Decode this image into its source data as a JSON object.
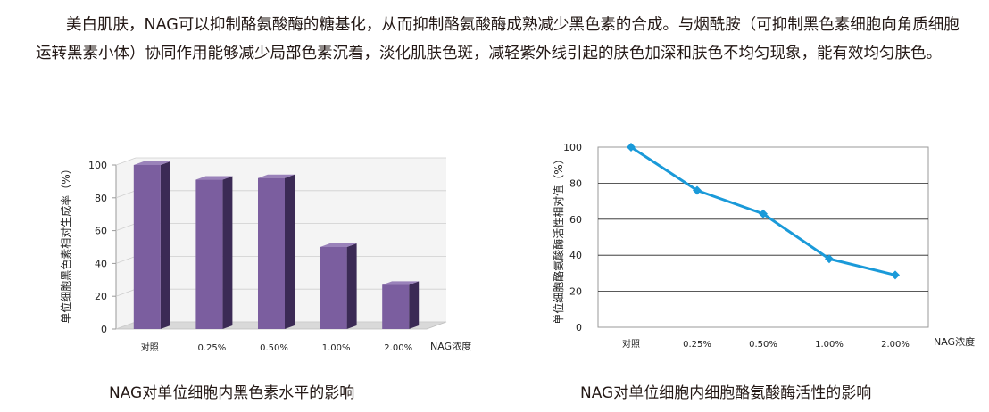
{
  "paragraph": "美白肌肤，NAG可以抑制酪氨酸酶的糖基化，从而抑制酪氨酸酶成熟减少黑色素的合成。与烟酰胺（可抑制黑色素细胞向角质细胞运转黑素小体）协同作用能够减少局部色素沉着，淡化肌肤色斑，减轻紫外线引起的肤色加深和肤色不均匀现象，能有效均匀肤色。",
  "chart_data": [
    {
      "type": "bar",
      "title": "NAG对单位细胞内黑色素水平的影响",
      "ylabel": "单位细胞黑色素相对生成率（%）",
      "xlabel": "NAG浓度",
      "categories": [
        "对照",
        "0.25%",
        "0.50%",
        "1.00%",
        "2.00%"
      ],
      "values": [
        100,
        91,
        92,
        50,
        27
      ],
      "ylim": [
        0,
        100
      ],
      "yticks": [
        "0",
        "20",
        "40",
        "60",
        "80",
        "100"
      ],
      "grid": true,
      "bar_color": "#7b5e9f",
      "bar_side_color": "#3b2a55",
      "bar_top_color": "#9a82ba"
    },
    {
      "type": "line",
      "title": "NAG对单位细胞内细胞酪氨酸酶活性的影响",
      "ylabel": "单位细胞酪氨酸酶活性相对值（%）",
      "xlabel": "NAG浓度",
      "categories": [
        "对照",
        "0.25%",
        "0.50%",
        "1.00%",
        "2.00%"
      ],
      "values": [
        100,
        76,
        63,
        38,
        29
      ],
      "ylim": [
        0,
        100
      ],
      "yticks": [
        "0",
        "20",
        "40",
        "60",
        "80",
        "100"
      ],
      "grid": true,
      "line_color": "#1a9ad9"
    }
  ]
}
